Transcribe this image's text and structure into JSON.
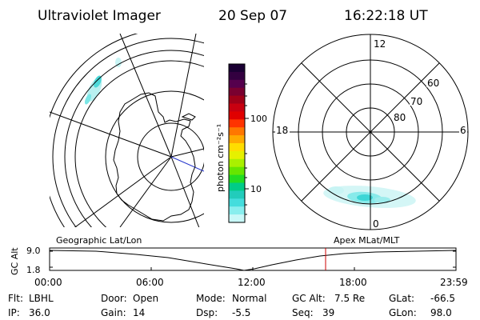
{
  "header": {
    "instrument": "Ultraviolet Imager",
    "date": "20 Sep 07",
    "time": "16:22:18 UT"
  },
  "colorbar": {
    "label": "photon cm⁻²s⁻¹",
    "ticks": [
      "100",
      "10"
    ],
    "colors": [
      "#1a0033",
      "#330040",
      "#55004d",
      "#7a0030",
      "#a00018",
      "#c80010",
      "#e00000",
      "#ff3300",
      "#ff7700",
      "#ffaa00",
      "#ffdd00",
      "#e6f000",
      "#aaf000",
      "#66e600",
      "#22dd22",
      "#00cc88",
      "#22ccbb",
      "#44dddd",
      "#88eeee",
      "#c8f8f8"
    ]
  },
  "polar_plot": {
    "hour_labels": [
      "12",
      "18",
      "6",
      "0"
    ],
    "lat_labels": [
      "60",
      "70",
      "80"
    ]
  },
  "timeline": {
    "left_title": "Geographic Lat/Lon",
    "right_title": "Apex MLat/MLT",
    "axis_title": "GC Alt",
    "y_labels": [
      "9.0",
      "1.8"
    ],
    "x_labels": [
      "00:00",
      "06:00",
      "12:00",
      "18:00",
      "23:59"
    ],
    "marker_color": "#cc0000"
  },
  "info": {
    "filter_label": "Flt:",
    "filter_value": "LBHL",
    "door_label": "Door:",
    "door_value": "Open",
    "mode_label": "Mode:",
    "mode_value": "Normal",
    "gcalt_label": "GC Alt:",
    "gcalt_value": "7.5 Re",
    "glat_label": "GLat:",
    "glat_value": "-66.5",
    "ip_label": "IP:",
    "ip_value": "36.0",
    "gain_label": "Gain:",
    "gain_value": "14",
    "dsp_label": "Dsp:",
    "dsp_value": "-5.5",
    "seq_label": "Seq:",
    "seq_value": "39",
    "glon_label": "GLon:",
    "glon_value": "98.0"
  }
}
